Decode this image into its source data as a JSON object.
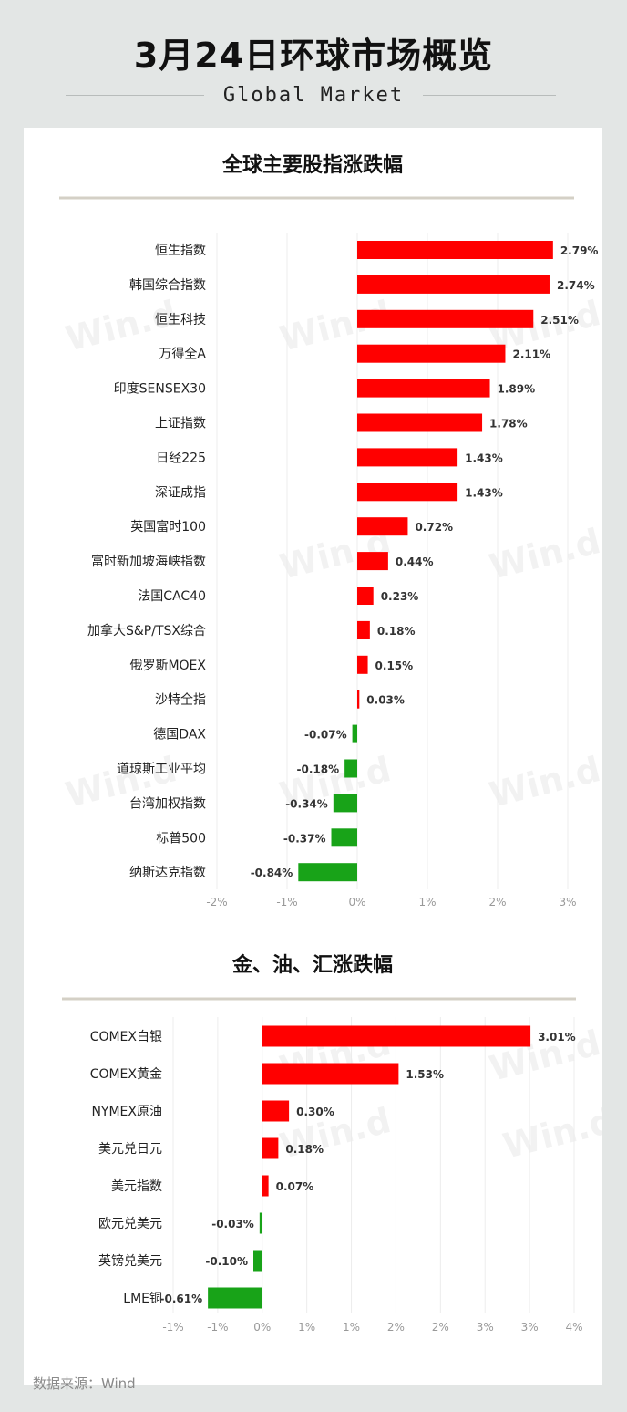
{
  "header": {
    "title": "3月24日环球市场概览",
    "subtitle": "Global Market"
  },
  "watermark": "Win.d",
  "footer": {
    "source": "数据来源：Wind"
  },
  "colors": {
    "up": "#ff0000",
    "down": "#18a318",
    "rule": "#d4d0c6"
  },
  "chart_data": [
    {
      "type": "bar",
      "orientation": "horizontal",
      "title": "全球主要股指涨跌幅",
      "categories": [
        "恒生指数",
        "韩国综合指数",
        "恒生科技",
        "万得全A",
        "印度SENSEX30",
        "上证指数",
        "日经225",
        "深证成指",
        "英国富时100",
        "富时新加坡海峡指数",
        "法国CAC40",
        "加拿大S&P/TSX综合",
        "俄罗斯MOEX",
        "沙特全指",
        "德国DAX",
        "道琼斯工业平均",
        "台湾加权指数",
        "标普500",
        "纳斯达克指数"
      ],
      "values": [
        2.79,
        2.74,
        2.51,
        2.11,
        1.89,
        1.78,
        1.43,
        1.43,
        0.72,
        0.44,
        0.23,
        0.18,
        0.15,
        0.03,
        -0.07,
        -0.18,
        -0.34,
        -0.37,
        -0.84
      ],
      "value_labels": [
        "2.79%",
        "2.74%",
        "2.51%",
        "2.11%",
        "1.89%",
        "1.78%",
        "1.43%",
        "1.43%",
        "0.72%",
        "0.44%",
        "0.23%",
        "0.18%",
        "0.15%",
        "0.03%",
        "-0.07%",
        "-0.18%",
        "-0.34%",
        "-0.37%",
        "-0.84%"
      ],
      "xticks": [
        "-2%",
        "-1%",
        "0%",
        "1%",
        "2%",
        "3%"
      ],
      "tick_values": [
        -2,
        -1,
        0,
        1,
        2,
        3
      ],
      "xlim": [
        -2,
        3
      ],
      "grid": true
    },
    {
      "type": "bar",
      "orientation": "horizontal",
      "title": "金、油、汇涨跌幅",
      "categories": [
        "COMEX白银",
        "COMEX黄金",
        "NYMEX原油",
        "美元兑日元",
        "美元指数",
        "欧元兑美元",
        "英镑兑美元",
        "LME铜"
      ],
      "values": [
        3.01,
        1.53,
        0.3,
        0.18,
        0.07,
        -0.03,
        -0.1,
        -0.61
      ],
      "value_labels": [
        "3.01%",
        "1.53%",
        "0.30%",
        "0.18%",
        "0.07%",
        "-0.03%",
        "-0.10%",
        "-0.61%"
      ],
      "xticks": [
        "-1%",
        "-1%",
        "0%",
        "1%",
        "1%",
        "2%",
        "2%",
        "3%",
        "3%",
        "4%"
      ],
      "tick_values": [
        -1,
        -0.5,
        0,
        0.5,
        1,
        1.5,
        2,
        2.5,
        3,
        3.5
      ],
      "xlim": [
        -1,
        3.5
      ],
      "grid": true
    }
  ]
}
